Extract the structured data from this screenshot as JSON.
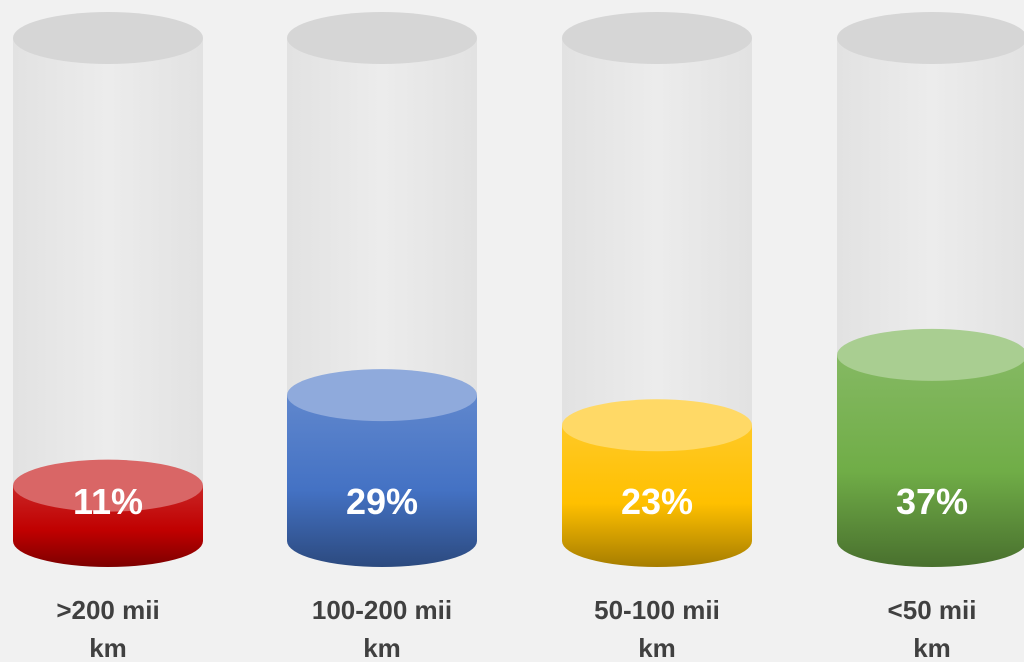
{
  "chart_data": {
    "type": "bar",
    "style": "cylinder",
    "categories": [
      ">200 mii km",
      "100-200 mii km",
      "50-100 mii km",
      "<50 mii km"
    ],
    "category_lines": [
      [
        ">200 mii",
        "km"
      ],
      [
        "100-200 mii",
        "km"
      ],
      [
        "50-100 mii",
        "km"
      ],
      [
        "<50 mii",
        "km"
      ]
    ],
    "values": [
      11,
      29,
      23,
      37
    ],
    "value_labels": [
      "11%",
      "29%",
      "23%",
      "37%"
    ],
    "colors": [
      "#c00000",
      "#4472c4",
      "#ffc000",
      "#70ad47"
    ],
    "ylim": [
      0,
      100
    ],
    "grid": false,
    "legend": "none"
  }
}
